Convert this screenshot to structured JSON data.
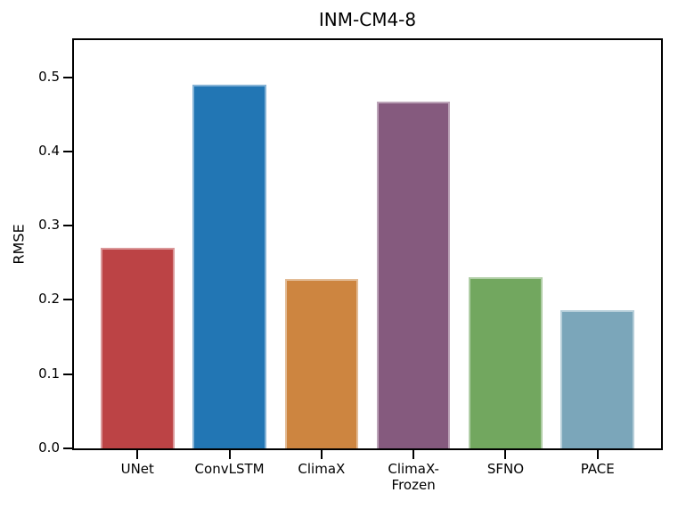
{
  "figure": {
    "background": "#ffffff",
    "spine_color": "#000000"
  },
  "chart_data": {
    "type": "bar",
    "title": "INM-CM4-8",
    "xlabel": "",
    "ylabel": "RMSE",
    "categories": [
      "UNet",
      "ConvLSTM",
      "ClimaX",
      "ClimaX-\nFrozen",
      "SFNO",
      "PACE"
    ],
    "values": [
      0.27,
      0.49,
      0.228,
      0.467,
      0.23,
      0.186
    ],
    "colors": [
      "#bc4345",
      "#2276b4",
      "#cd8540",
      "#855a7e",
      "#72a75f",
      "#7ba6ba"
    ],
    "ylim": [
      0,
      0.55
    ],
    "xlim": [
      -0.69,
      5.69
    ],
    "bar_width": 0.8,
    "yticks": [
      0.0,
      0.1,
      0.2,
      0.3,
      0.4,
      0.5
    ],
    "ytick_labels": [
      "0.0",
      "0.1",
      "0.2",
      "0.3",
      "0.4",
      "0.5"
    ],
    "grid": false,
    "legend": false
  }
}
